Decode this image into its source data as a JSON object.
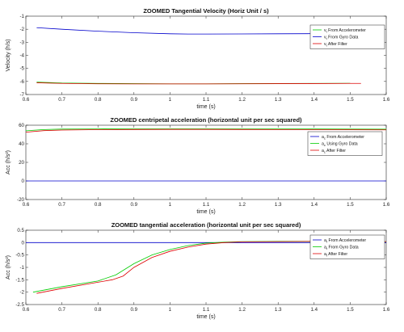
{
  "chart_data": [
    {
      "type": "line",
      "title": "ZOOMED Tangential Velocity (Horiz Unit / s)",
      "xlabel": "time (s)",
      "ylabel": "Velocity (h/s)",
      "xlim": [
        0.6,
        1.6
      ],
      "ylim": [
        -7,
        -1
      ],
      "xticks": [
        "0.6",
        "0.7",
        "0.8",
        "0.9",
        "1",
        "1.1",
        "1.2",
        "1.3",
        "1.4",
        "1.5",
        "1.6"
      ],
      "yticks": [
        "-1",
        "-2",
        "-3",
        "-4",
        "-5",
        "-6",
        "-7"
      ],
      "grid": false,
      "legend_position": "top-right",
      "series": [
        {
          "name": "v_t From Accelerometer",
          "legend_main": "v",
          "legend_sub": "t",
          "legend_rest": " From Accelerometer",
          "color": "#00cc00",
          "x": [
            0.63,
            0.7,
            0.8,
            0.9,
            1.0,
            1.1,
            1.2,
            1.3,
            1.4,
            1.5
          ],
          "y": [
            -6.05,
            -6.12,
            -6.15,
            -6.17,
            -6.18,
            -6.18,
            -6.17,
            -6.16,
            -6.15,
            -6.14
          ]
        },
        {
          "name": "v_t From Gyro Data",
          "legend_main": "v",
          "legend_sub": "t",
          "legend_rest": " From Gyro Data",
          "color": "#0000cc",
          "x": [
            0.63,
            0.7,
            0.8,
            0.9,
            1.0,
            1.05,
            1.1,
            1.2,
            1.3,
            1.4,
            1.5
          ],
          "y": [
            -1.88,
            -2.0,
            -2.15,
            -2.27,
            -2.35,
            -2.37,
            -2.37,
            -2.36,
            -2.35,
            -2.34,
            -2.33
          ]
        },
        {
          "name": "v_t After Filter",
          "legend_main": "v",
          "legend_sub": "t",
          "legend_rest": " After Filter",
          "color": "#dd0000",
          "x": [
            0.63,
            0.7,
            0.8,
            0.9,
            1.0,
            1.1,
            1.2,
            1.3,
            1.4,
            1.5,
            1.53
          ],
          "y": [
            -6.1,
            -6.15,
            -6.18,
            -6.19,
            -6.19,
            -6.19,
            -6.18,
            -6.17,
            -6.16,
            -6.15,
            -6.15
          ]
        }
      ]
    },
    {
      "type": "line",
      "title": "ZOOMED centripetal acceleration (horizontal unit per sec squared)",
      "xlabel": "time (s)",
      "ylabel": "Acc (h/s²)",
      "xlim": [
        0.6,
        1.6
      ],
      "ylim": [
        -20,
        60
      ],
      "xticks": [
        "0.6",
        "0.7",
        "0.8",
        "0.9",
        "1",
        "1.1",
        "1.2",
        "1.3",
        "1.4",
        "1.5",
        "1.6"
      ],
      "yticks": [
        "60",
        "40",
        "20",
        "0",
        "-20"
      ],
      "grid": false,
      "legend_position": "top-right",
      "series": [
        {
          "name": "a_c From Accelerometer",
          "legend_main": "a",
          "legend_sub": "c",
          "legend_rest": " From Accelerometer",
          "color": "#0000cc",
          "x": [
            0.6,
            1.6
          ],
          "y": [
            0,
            0
          ]
        },
        {
          "name": "a_c Using Gyro Data",
          "legend_main": "a",
          "legend_sub": "c",
          "legend_rest": " Using Gyro Data",
          "color": "#00cc00",
          "x": [
            0.6,
            0.65,
            0.7,
            0.8,
            0.9,
            1.0,
            1.1,
            1.2,
            1.3,
            1.4,
            1.5,
            1.6
          ],
          "y": [
            54,
            55.3,
            55.8,
            56.0,
            56.1,
            56.1,
            56.1,
            56.0,
            56.0,
            55.9,
            55.8,
            55.7
          ]
        },
        {
          "name": "a_c After Filter",
          "legend_main": "a",
          "legend_sub": "c",
          "legend_rest": " After Filter",
          "color": "#dd0000",
          "x": [
            0.6,
            0.65,
            0.7,
            0.8,
            0.9,
            1.0,
            1.1,
            1.2,
            1.3,
            1.4,
            1.5,
            1.6
          ],
          "y": [
            52.5,
            54.2,
            54.8,
            55.2,
            55.4,
            55.5,
            55.5,
            55.4,
            55.3,
            55.2,
            55.1,
            55.0
          ]
        }
      ]
    },
    {
      "type": "line",
      "title": "ZOOMED tangential acceleration (horizontal unit per sec squared)",
      "xlabel": "time (s)",
      "ylabel": "Acc (h/s²)",
      "xlim": [
        0.6,
        1.6
      ],
      "ylim": [
        -2.5,
        0.5
      ],
      "xticks": [
        "0.6",
        "0.7",
        "0.8",
        "0.9",
        "1",
        "1.1",
        "1.2",
        "1.3",
        "1.4",
        "1.5",
        "1.6"
      ],
      "yticks": [
        "0.5",
        "0",
        "-0.5",
        "-1",
        "-1.5",
        "-2",
        "-2.5"
      ],
      "grid": false,
      "legend_position": "top-right",
      "series": [
        {
          "name": "a_t From Accelerometer",
          "legend_main": "a",
          "legend_sub": "t",
          "legend_rest": " From Accelerometer",
          "color": "#0000cc",
          "x": [
            0.6,
            1.6
          ],
          "y": [
            0,
            0
          ]
        },
        {
          "name": "a_t From Gyro Data",
          "legend_main": "a",
          "legend_sub": "t",
          "legend_rest": " From Gyro Data",
          "color": "#00cc00",
          "x": [
            0.62,
            0.7,
            0.8,
            0.85,
            0.9,
            0.95,
            1.0,
            1.05,
            1.1,
            1.15,
            1.2,
            1.3,
            1.4,
            1.5,
            1.6
          ],
          "y": [
            -2.0,
            -1.78,
            -1.55,
            -1.3,
            -0.85,
            -0.5,
            -0.28,
            -0.12,
            -0.02,
            0.02,
            0.04,
            0.05,
            0.05,
            0.04,
            0.03
          ]
        },
        {
          "name": "a_t After Filter",
          "legend_main": "a",
          "legend_sub": "t",
          "legend_rest": " After Filter",
          "color": "#dd0000",
          "x": [
            0.63,
            0.7,
            0.8,
            0.84,
            0.87,
            0.9,
            0.95,
            1.0,
            1.05,
            1.1,
            1.15,
            1.2,
            1.3,
            1.4,
            1.5,
            1.6
          ],
          "y": [
            -2.05,
            -1.85,
            -1.6,
            -1.5,
            -1.35,
            -1.0,
            -0.6,
            -0.35,
            -0.18,
            -0.06,
            0.0,
            0.03,
            0.04,
            0.05,
            0.05,
            0.04
          ]
        }
      ]
    }
  ]
}
